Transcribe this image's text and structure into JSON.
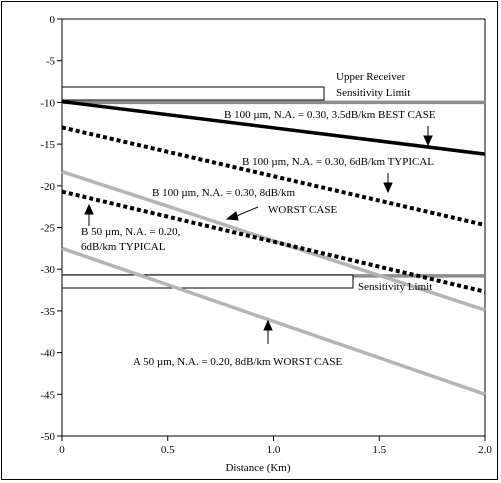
{
  "chart_data": {
    "type": "line",
    "xlabel": "Distance (Km)",
    "ylabel": "",
    "xlim": [
      0,
      2.0
    ],
    "ylim": [
      -50,
      0
    ],
    "x_ticks": [
      0,
      0.5,
      1.0,
      1.5,
      2.0
    ],
    "x_tick_labels": [
      "0",
      "0.5",
      "1.0",
      "1.5",
      "2.0"
    ],
    "y_ticks": [
      0,
      -5,
      -10,
      -15,
      -20,
      -25,
      -30,
      -35,
      -40,
      -45,
      -50
    ],
    "y_tick_labels": [
      "0",
      "-5",
      "-10",
      "-15",
      "-20",
      "-25",
      "-30",
      "-35",
      "-40",
      "-45",
      "-50"
    ],
    "grid": false,
    "reference_lines": [
      {
        "label": "Upper Receiver Sensitivity Limit",
        "label_lines": [
          "Upper Receiver",
          "Sensitivity Limit"
        ],
        "y": -10,
        "color": "#8c8c8c"
      },
      {
        "label": "Sensitivity Limit",
        "label_lines": [
          "Sensitivity Limit"
        ],
        "y": -30.8,
        "color": "#8c8c8c"
      }
    ],
    "series": [
      {
        "id": "b100-best",
        "style": "solid",
        "color": "#000000",
        "width": 3.5,
        "x": [
          0,
          2.0
        ],
        "y": [
          -9.9,
          -16.2
        ]
      },
      {
        "id": "b100-typical",
        "style": "dotted",
        "color": "#000000",
        "width": 4,
        "x": [
          0,
          2.0
        ],
        "y": [
          -13.0,
          -24.7
        ]
      },
      {
        "id": "b100-worst",
        "style": "solid",
        "color": "#b4b4b4",
        "width": 3.5,
        "x": [
          0,
          2.0
        ],
        "y": [
          -18.3,
          -34.9
        ]
      },
      {
        "id": "b50-typical",
        "style": "dotted",
        "color": "#000000",
        "width": 4,
        "x": [
          0,
          2.0
        ],
        "y": [
          -20.7,
          -32.7
        ]
      },
      {
        "id": "a50-worst",
        "style": "solid",
        "color": "#b4b4b4",
        "width": 3.5,
        "x": [
          0,
          2.0
        ],
        "y": [
          -27.5,
          -45.0
        ]
      }
    ],
    "annotations": [
      {
        "id": "ann-b100-best",
        "lines": [
          "B 100 µm, N.A. = 0.30, 3.5dB/km BEST CASE"
        ]
      },
      {
        "id": "ann-b100-typical",
        "lines": [
          "B 100 µm, N.A. = 0.30, 6dB/km TYPICAL"
        ]
      },
      {
        "id": "ann-b100-worst",
        "lines": [
          "B 100 µm, N.A. = 0.30, 8dB/km",
          "WORST CASE"
        ]
      },
      {
        "id": "ann-b50-typical",
        "lines": [
          "B 50 µm, N.A. = 0.20,",
          "6dB/km TYPICAL"
        ]
      },
      {
        "id": "ann-a50-worst",
        "lines": [
          "A 50 µm, N.A. = 0.20, 8dB/km WORST CASE"
        ]
      }
    ]
  }
}
